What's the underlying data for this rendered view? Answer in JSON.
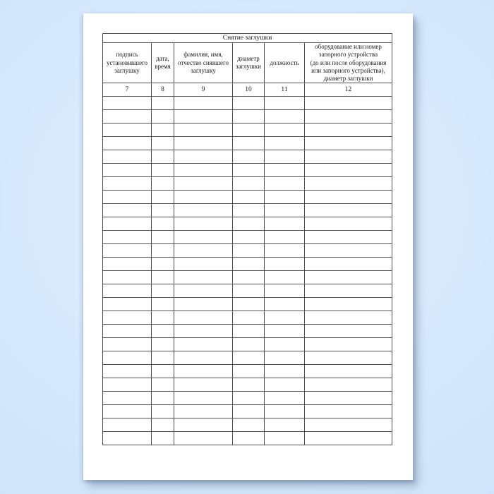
{
  "colors": {
    "background_light": "#e1effe",
    "background_edge": "#cfe4fa",
    "paper": "#ffffff",
    "table_border": "#4f4f4f",
    "ink": "#1c1c1c"
  },
  "table": {
    "title": "Снятие заглушки",
    "columns": [
      {
        "header": "подпись\nустановившего\nзаглушку",
        "number": "7"
      },
      {
        "header": "дата,\nвремя",
        "number": "8"
      },
      {
        "header": "фамилия, имя,\nотчество снявшего\nзаглушку",
        "number": "9"
      },
      {
        "header": "диаметр\nзаглушки",
        "number": "10"
      },
      {
        "header": "должность",
        "number": "11"
      },
      {
        "header": "оборудование или номер\nзапорного устройства\n(до или после оборудования\nили запорного устройства),\nдиаметр заглушки",
        "number": "12"
      }
    ],
    "empty_row_count": 26
  }
}
